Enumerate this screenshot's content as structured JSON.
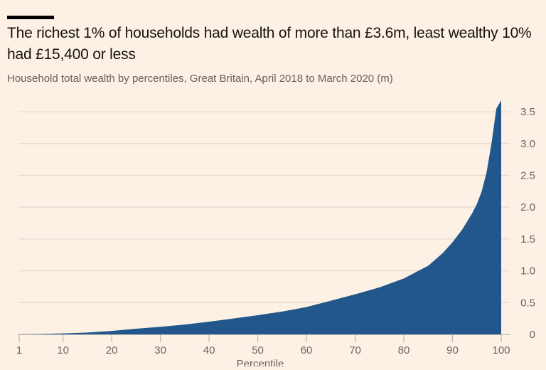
{
  "page": {
    "background": "#FDF1E5"
  },
  "header": {
    "motif_color": "#000000",
    "title": "The richest 1% of households had wealth of more than £3.6m, least wealthy 10% had £15,400 or less",
    "subtitle": "Household total wealth by percentiles, Great Britain, April 2018 to March 2020 (m)"
  },
  "chart_data": {
    "type": "area",
    "title": "The richest 1% of households had wealth of more than £3.6m, least wealthy 10% had £15,400 or less",
    "subtitle": "Household total wealth by percentiles, Great Britain, April 2018 to March 2020 (m)",
    "series_name": "Household total wealth (£m)",
    "xlabel": "Percentile",
    "ylabel": "",
    "x": [
      1,
      5,
      10,
      15,
      20,
      25,
      30,
      35,
      40,
      45,
      50,
      55,
      60,
      65,
      70,
      75,
      80,
      85,
      88,
      90,
      92,
      94,
      95,
      96,
      97,
      98,
      99,
      100
    ],
    "values": [
      0.002,
      0.007,
      0.0154,
      0.03,
      0.055,
      0.09,
      0.12,
      0.155,
      0.2,
      0.25,
      0.302,
      0.36,
      0.43,
      0.53,
      0.63,
      0.74,
      0.88,
      1.08,
      1.28,
      1.45,
      1.65,
      1.9,
      2.05,
      2.25,
      2.55,
      3.0,
      3.55,
      3.68
    ],
    "x_ticks": [
      1,
      10,
      20,
      30,
      40,
      50,
      60,
      70,
      80,
      90,
      100
    ],
    "y_ticks": [
      0,
      0.5,
      1.0,
      1.5,
      2.0,
      2.5,
      3.0,
      3.5
    ],
    "y_tick_labels": [
      "0",
      "0.5",
      "1.0",
      "1.5",
      "2.0",
      "2.5",
      "3.0",
      "3.5"
    ],
    "xlim": [
      1,
      100
    ],
    "ylim": [
      0,
      3.68
    ],
    "grid": "horizontal",
    "y_axis_side": "right",
    "annotations": {
      "p10_value_gbp": "15,400",
      "p99_value_gbp_m": "3.6"
    },
    "colors": {
      "area": "#21578B",
      "grid": "#E4DCD2",
      "axis_line": "#BDB5AB",
      "tick_text": "#6A645F",
      "title_text": "#15130F",
      "subtitle_text": "#66605C",
      "background": "#FDF1E5"
    }
  }
}
